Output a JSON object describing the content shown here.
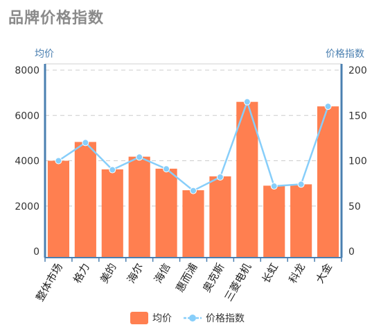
{
  "page": {
    "title": "品牌价格指数"
  },
  "chart_data": {
    "type": "bar",
    "categories": [
      "整体市场",
      "格力",
      "美的",
      "海尔",
      "海信",
      "惠而浦",
      "奥克斯",
      "三菱电机",
      "长虹",
      "科龙",
      "大金"
    ],
    "series": [
      {
        "name": "均价",
        "type": "bar",
        "axis": "left",
        "color": "#ff7f50",
        "values": [
          4000,
          4830,
          3620,
          4180,
          3650,
          2700,
          3310,
          6600,
          2900,
          2960,
          6400
        ]
      },
      {
        "name": "价格指数",
        "type": "line",
        "axis": "right",
        "color": "#87cefa",
        "values": [
          100,
          120,
          90,
          104,
          91,
          67,
          82,
          165,
          72,
          74,
          160
        ]
      }
    ],
    "y_left": {
      "label": "均价",
      "range": [
        0,
        8000
      ],
      "ticks": [
        0,
        2000,
        4000,
        6000,
        8000
      ]
    },
    "y_right": {
      "label": "价格指数",
      "range": [
        0,
        200
      ],
      "ticks": [
        0,
        50,
        100,
        150,
        200
      ]
    },
    "grid": true,
    "legend": {
      "position": "bottom",
      "items": [
        "均价",
        "价格指数"
      ]
    }
  }
}
